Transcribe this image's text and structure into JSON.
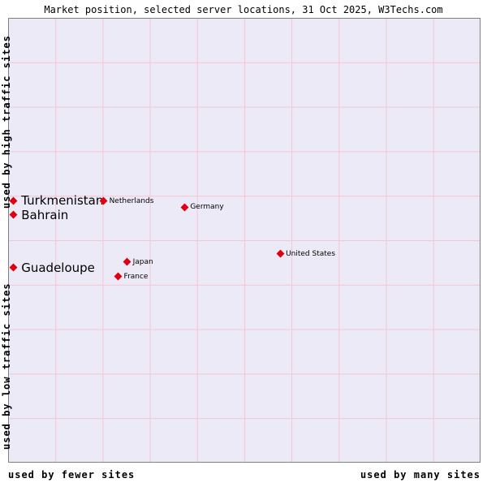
{
  "title": "Market position, selected server locations, 31 Oct 2025, W3Techs.com",
  "axes": {
    "y_top": "used by high traffic sites",
    "y_bottom": "used by low traffic sites",
    "x_left": "used by fewer sites",
    "x_right": "used by many sites"
  },
  "colors": {
    "marker": "#dd0011",
    "plot_bg": "#edeaf7",
    "grid": "#f3c6d3",
    "border": "#808080"
  },
  "chart_data": {
    "type": "scatter",
    "title": "Market position, selected server locations, 31 Oct 2025, W3Techs.com",
    "x_axis": {
      "left_label": "used by fewer sites",
      "right_label": "used by many sites"
    },
    "y_axis": {
      "top_label": "used by high traffic sites",
      "bottom_label": "used by low traffic sites"
    },
    "grid": true,
    "points": [
      {
        "label": "Turkmenistan",
        "x_pct": 0.9,
        "y_pct": 41.1,
        "label_style": "large"
      },
      {
        "label": "Bahrain",
        "x_pct": 0.9,
        "y_pct": 44.3,
        "label_style": "large"
      },
      {
        "label": "Guadeloupe",
        "x_pct": 0.9,
        "y_pct": 56.2,
        "label_style": "large"
      },
      {
        "label": "Netherlands",
        "x_pct": 20.1,
        "y_pct": 41.2,
        "label_style": "small"
      },
      {
        "label": "Germany",
        "x_pct": 37.3,
        "y_pct": 42.5,
        "label_style": "small"
      },
      {
        "label": "Japan",
        "x_pct": 25.1,
        "y_pct": 54.9,
        "label_style": "small"
      },
      {
        "label": "France",
        "x_pct": 23.2,
        "y_pct": 58.2,
        "label_style": "small"
      },
      {
        "label": "United States",
        "x_pct": 57.6,
        "y_pct": 53.1,
        "label_style": "small"
      }
    ]
  }
}
